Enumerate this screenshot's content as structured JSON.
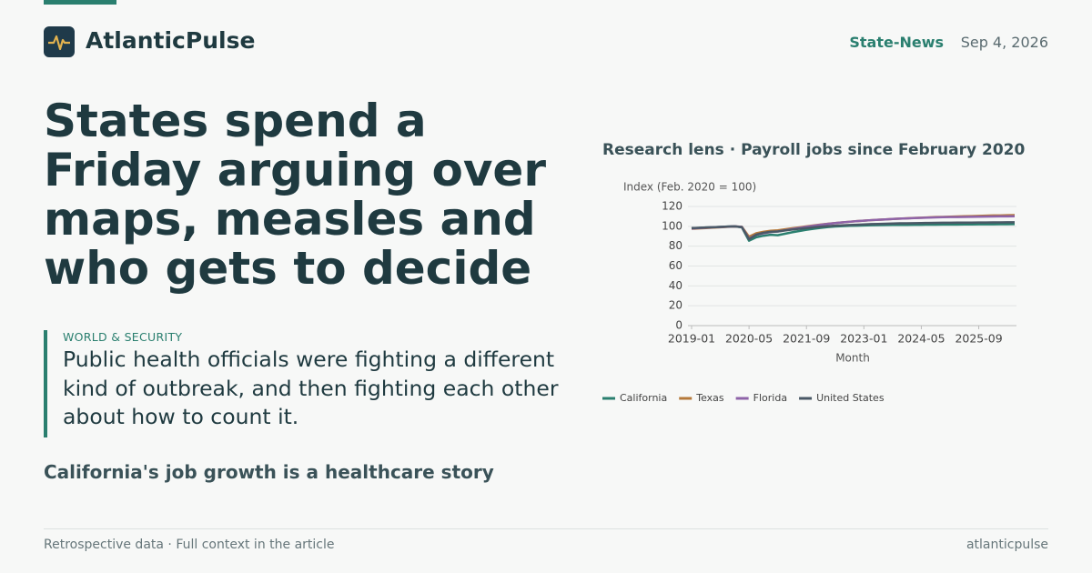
{
  "header": {
    "brand": "AtlanticPulse",
    "section": "State-News",
    "date": "Sep 4, 2026"
  },
  "article": {
    "headline": "States spend a Friday arguing over maps, measles and who gets to decide",
    "kicker": "WORLD & SECURITY",
    "dek": "Public health officials were fighting a different kind of outbreak, and then fighting each other about how to count it.",
    "related": "California's job growth is a healthcare story"
  },
  "footer": {
    "note": "Retrospective data · Full context in the article",
    "site": "atlanticpulse"
  },
  "chart_data": {
    "type": "line",
    "title": "Research lens · Payroll jobs since February 2020",
    "y_label": "Index (Feb. 2020 = 100)",
    "x_label": "Month",
    "x": [
      "2019-01",
      "2019-03",
      "2019-05",
      "2019-07",
      "2019-09",
      "2019-11",
      "2020-01",
      "2020-03",
      "2020-05",
      "2020-07",
      "2020-09",
      "2020-11",
      "2021-01",
      "2021-03",
      "2021-05",
      "2021-07",
      "2021-09",
      "2021-11",
      "2022-01",
      "2022-03",
      "2022-05",
      "2022-07",
      "2022-09",
      "2022-11",
      "2023-01",
      "2023-03",
      "2023-05",
      "2023-07",
      "2023-09",
      "2023-11",
      "2024-01",
      "2024-03",
      "2024-05",
      "2024-07",
      "2024-09",
      "2024-11",
      "2025-01",
      "2025-03",
      "2025-05",
      "2025-07",
      "2025-09",
      "2025-11",
      "2026-01",
      "2026-03",
      "2026-05",
      "2026-07"
    ],
    "xlim": [
      "2019-01",
      "2026-07"
    ],
    "xticks": [
      "2019-01",
      "2020-05",
      "2021-09",
      "2023-01",
      "2024-05",
      "2025-09"
    ],
    "ylim": [
      0,
      120
    ],
    "yticks": [
      0,
      20,
      40,
      60,
      80,
      100,
      120
    ],
    "grid": true,
    "legend": "bottom-left",
    "series": [
      {
        "name": "California",
        "color": "#2a7f6f",
        "values": [
          98.0,
          98.4,
          98.8,
          99.1,
          99.4,
          99.7,
          100.0,
          99.0,
          85.5,
          89.0,
          90.5,
          91.5,
          91.0,
          92.5,
          94.0,
          95.3,
          96.5,
          97.5,
          98.5,
          99.3,
          99.8,
          100.2,
          100.5,
          100.7,
          100.9,
          101.1,
          101.2,
          101.3,
          101.4,
          101.5,
          101.5,
          101.6,
          101.6,
          101.7,
          101.7,
          101.8,
          101.8,
          101.8,
          101.9,
          101.9,
          102.0,
          102.0,
          102.0,
          102.1,
          102.1,
          102.2
        ]
      },
      {
        "name": "Texas",
        "color": "#b5793a",
        "values": [
          97.5,
          97.9,
          98.3,
          98.7,
          99.1,
          99.5,
          99.9,
          99.5,
          89.5,
          93.0,
          94.5,
          95.5,
          96.0,
          97.0,
          98.0,
          99.0,
          100.0,
          100.9,
          101.8,
          102.6,
          103.3,
          104.0,
          104.6,
          105.2,
          105.7,
          106.2,
          106.6,
          107.0,
          107.4,
          107.8,
          108.1,
          108.4,
          108.7,
          109.0,
          109.3,
          109.5,
          109.7,
          109.9,
          110.1,
          110.3,
          110.5,
          110.7,
          110.9,
          111.0,
          111.2,
          111.3
        ]
      },
      {
        "name": "Florida",
        "color": "#8e63a8",
        "values": [
          97.8,
          98.2,
          98.6,
          99.0,
          99.3,
          99.6,
          100.0,
          99.4,
          87.5,
          91.5,
          93.0,
          94.2,
          94.8,
          96.0,
          97.2,
          98.4,
          99.5,
          100.6,
          101.6,
          102.5,
          103.3,
          104.0,
          104.6,
          105.2,
          105.7,
          106.2,
          106.6,
          107.0,
          107.4,
          107.7,
          108.0,
          108.3,
          108.6,
          108.8,
          109.0,
          109.2,
          109.3,
          109.4,
          109.5,
          109.6,
          109.7,
          109.8,
          109.9,
          110.0,
          110.0,
          110.1
        ]
      },
      {
        "name": "United States",
        "color": "#4a5866",
        "values": [
          98.2,
          98.5,
          98.8,
          99.1,
          99.4,
          99.7,
          100.0,
          99.2,
          87.0,
          91.5,
          93.5,
          94.5,
          94.8,
          95.8,
          96.7,
          97.5,
          98.2,
          99.0,
          99.6,
          100.2,
          100.6,
          101.0,
          101.3,
          101.6,
          101.9,
          102.2,
          102.4,
          102.6,
          102.8,
          103.0,
          103.1,
          103.2,
          103.3,
          103.4,
          103.5,
          103.6,
          103.6,
          103.7,
          103.8,
          103.8,
          103.9,
          103.9,
          104.0,
          104.0,
          104.1,
          104.1
        ]
      }
    ]
  }
}
